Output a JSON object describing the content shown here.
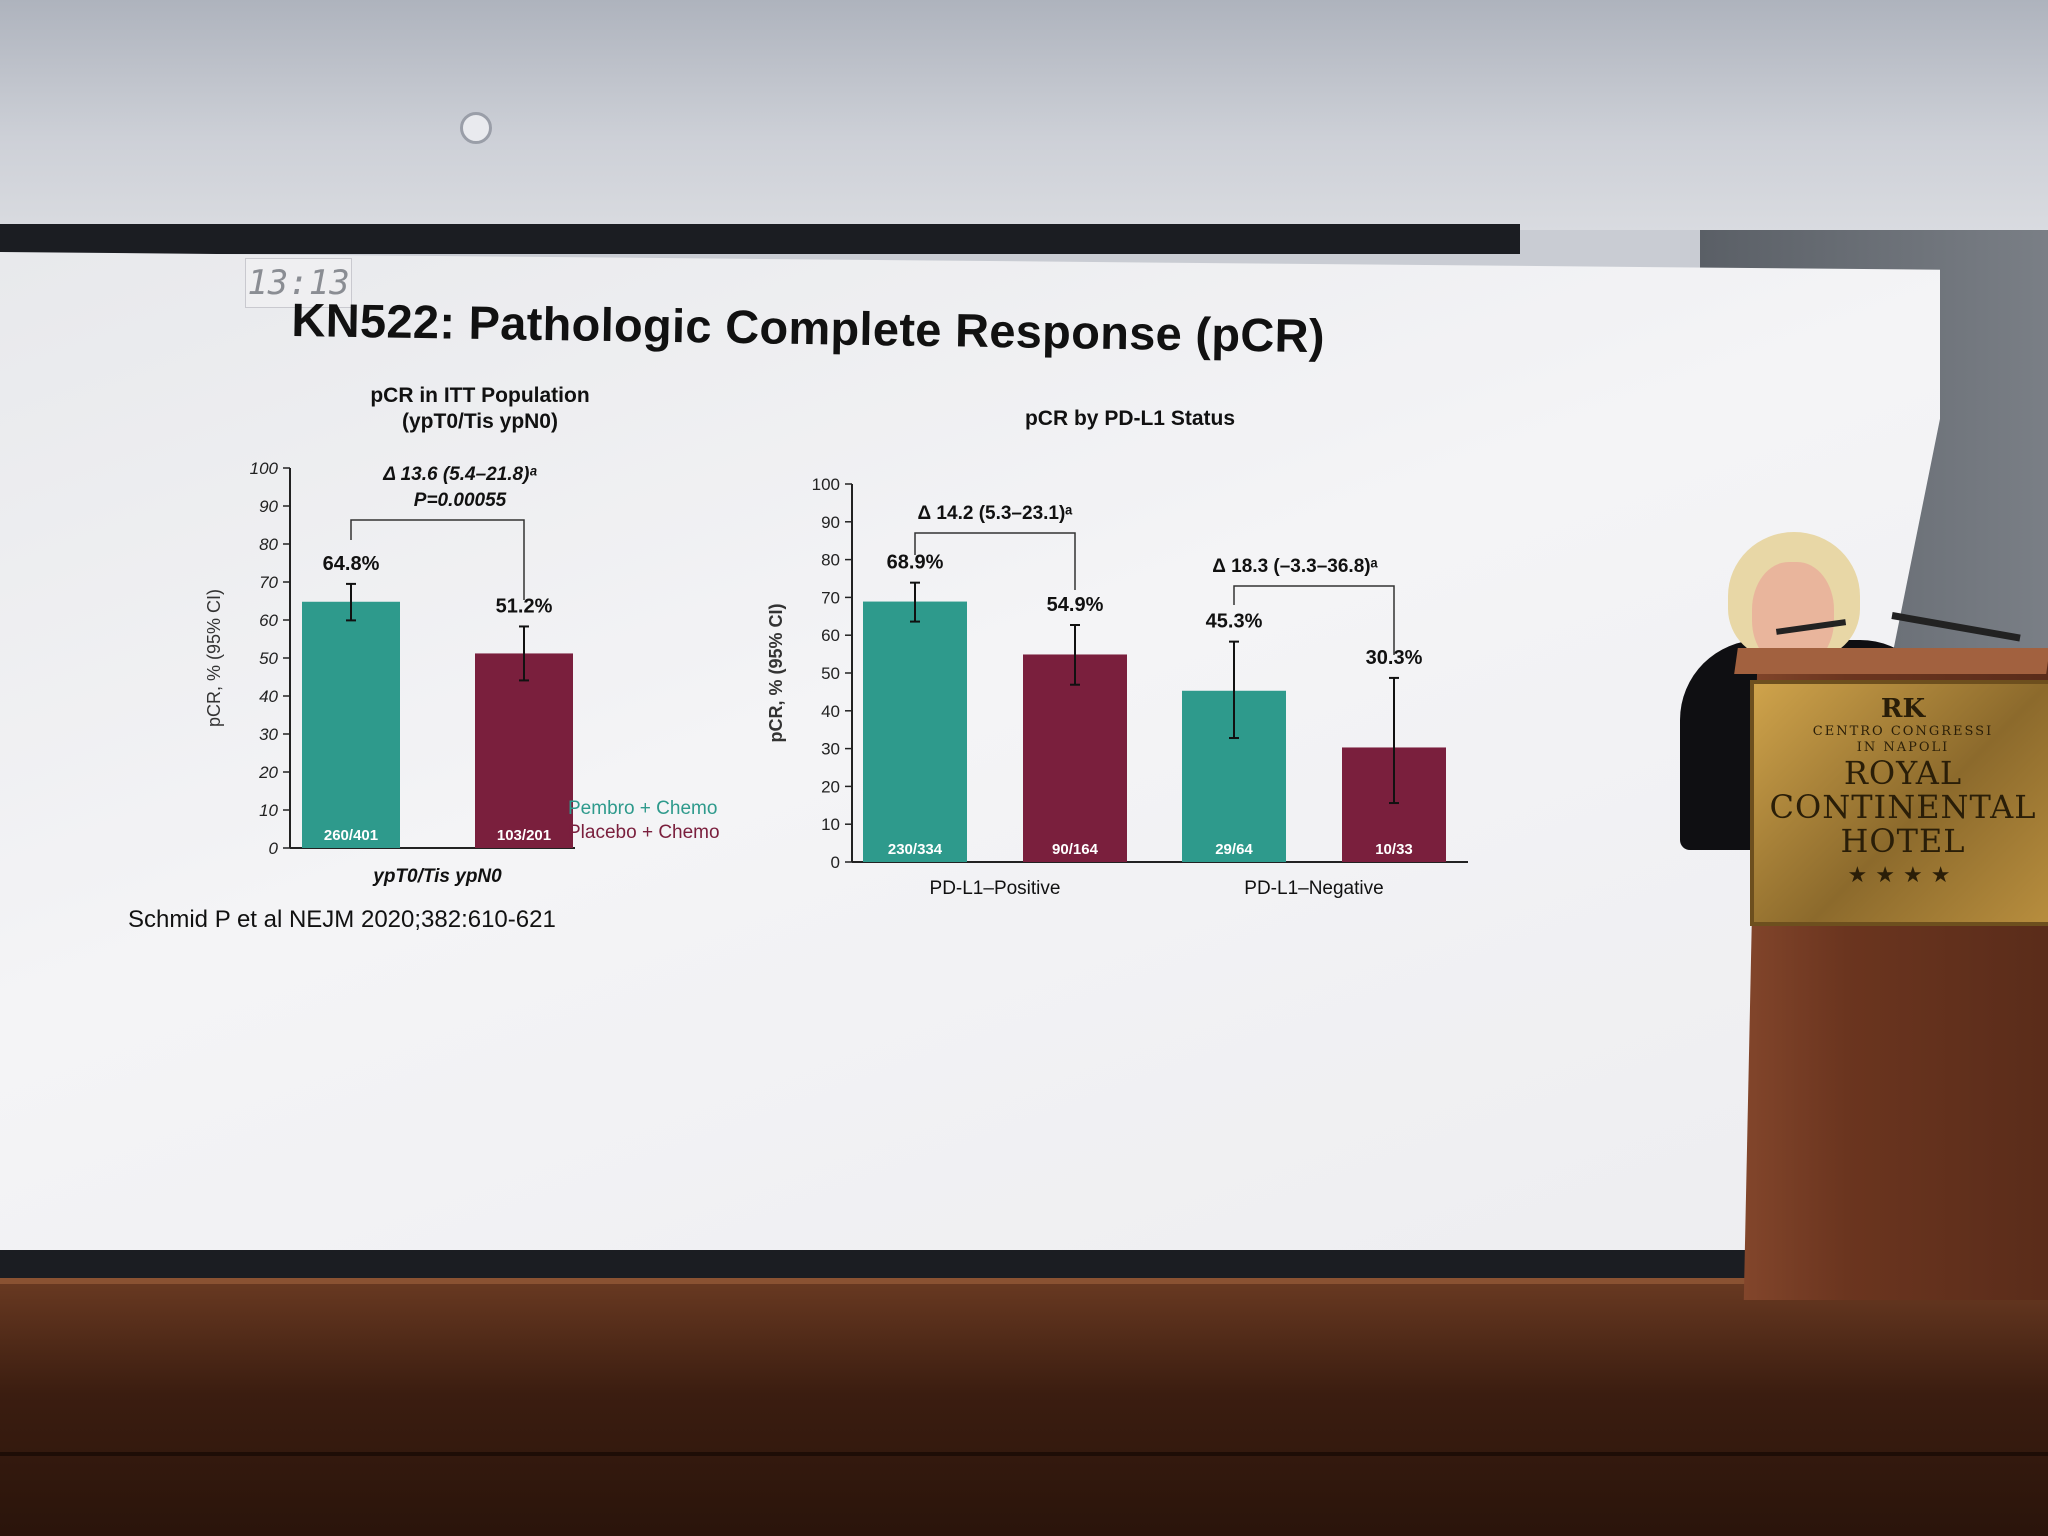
{
  "slide": {
    "clock": "13:13",
    "title": "KN522: Pathologic Complete Response (pCR)",
    "citation": "Schmid P et al NEJM 2020;382:610-621"
  },
  "colors": {
    "pembro": "#2e9a8c",
    "placebo": "#7a1f3d",
    "text": "#111111"
  },
  "podium": {
    "logo": "RK",
    "line1": "CENTRO CONGRESSI",
    "line2": "IN NAPOLI",
    "line3": "ROYAL",
    "line4": "CONTINENTAL",
    "line5": "HOTEL",
    "stars": "★★★★"
  },
  "chart_data": [
    {
      "type": "bar",
      "title": "pCR in ITT Population",
      "subtitle": "(ypT0/Tis ypN0)",
      "ylabel": "pCR, % (95% CI)",
      "xlabel": "ypT0/Tis ypN0",
      "ylim": [
        0,
        100
      ],
      "yticks": [
        0,
        10,
        20,
        30,
        40,
        50,
        60,
        70,
        80,
        90,
        100
      ],
      "series": [
        {
          "name": "Pembro + Chemo",
          "values": [
            64.8
          ],
          "ci": [
            [
              59.9,
              69.5
            ]
          ],
          "labels": [
            "64.8%"
          ],
          "counts": [
            "260/401"
          ]
        },
        {
          "name": "Placebo + Chemo",
          "values": [
            51.2
          ],
          "ci": [
            [
              44.1,
              58.3
            ]
          ],
          "labels": [
            "51.2%"
          ],
          "counts": [
            "103/201"
          ]
        }
      ],
      "annotations": [
        "Δ 13.6 (5.4–21.8)ᵃ",
        "P=0.00055"
      ],
      "legend": "bottom-right"
    },
    {
      "type": "bar",
      "title": "pCR by PD-L1 Status",
      "ylabel": "pCR, % (95% CI)",
      "ylim": [
        0,
        100
      ],
      "yticks": [
        0,
        10,
        20,
        30,
        40,
        50,
        60,
        70,
        80,
        90,
        100
      ],
      "categories": [
        "PD-L1–Positive",
        "PD-L1–Negative"
      ],
      "series": [
        {
          "name": "Pembro + Chemo",
          "values": [
            68.9,
            45.3
          ],
          "ci": [
            [
              63.6,
              73.9
            ],
            [
              32.8,
              58.3
            ]
          ],
          "labels": [
            "68.9%",
            "45.3%"
          ],
          "counts": [
            "230/334",
            "29/64"
          ]
        },
        {
          "name": "Placebo + Chemo",
          "values": [
            54.9,
            30.3
          ],
          "ci": [
            [
              46.9,
              62.7
            ],
            [
              15.6,
              48.7
            ]
          ],
          "labels": [
            "54.9%",
            "30.3%"
          ],
          "counts": [
            "90/164",
            "10/33"
          ]
        }
      ],
      "annotations": [
        "Δ 14.2 (5.3–23.1)ᵃ",
        "Δ 18.3 (–3.3–36.8)ᵃ"
      ]
    }
  ]
}
